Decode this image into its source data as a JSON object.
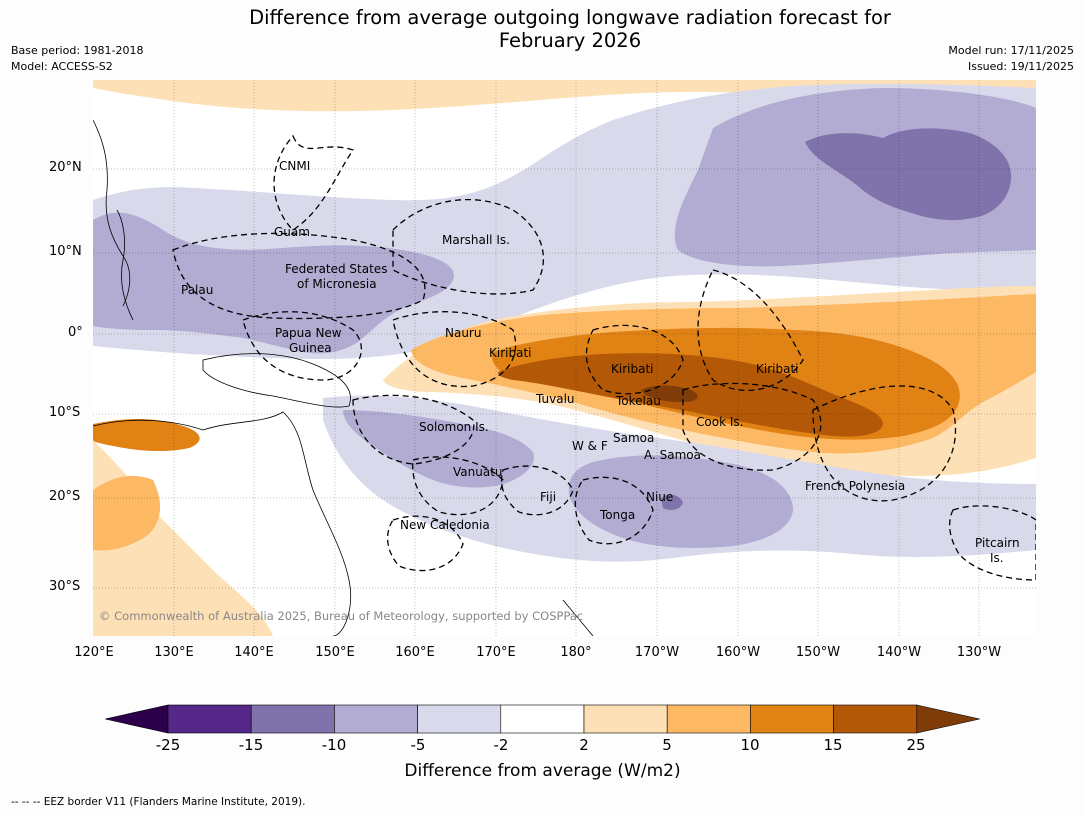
{
  "title_line1": "Difference from average outgoing longwave radiation forecast for",
  "title_line2": "February 2026",
  "base_period": "Base period: 1981-2018",
  "model": "Model: ACCESS-S2",
  "model_run": "Model run: 17/11/2025",
  "issued": "Issued: 19/11/2025",
  "lat_labels": [
    "20°N",
    "10°N",
    "0°",
    "10°S",
    "20°S",
    "30°S"
  ],
  "lon_labels": [
    "120°E",
    "130°E",
    "140°E",
    "150°E",
    "160°E",
    "170°E",
    "180°",
    "170°W",
    "160°W",
    "150°W",
    "140°W",
    "130°W"
  ],
  "regions": {
    "cnmi": "CNMI",
    "guam": "Guam",
    "marshall": "Marshall Is.",
    "fsm_1": "Federated States",
    "fsm_2": "of Micronesia",
    "palau": "Palau",
    "png_1": "Papua New",
    "png_2": "Guinea",
    "nauru": "Nauru",
    "kiribati_w": "Kiribati",
    "kiribati_c": "Kiribati",
    "kiribati_e": "Kiribati",
    "tuvalu": "Tuvalu",
    "tokelau": "Tokelau",
    "cook": "Cook Is.",
    "solomon": "Solomon Is.",
    "wf": "W & F",
    "samoa": "Samoa",
    "asamoa": "A. Samoa",
    "vanuatu": "Vanuatu",
    "fiji": "Fiji",
    "niue": "Niue",
    "tonga": "Tonga",
    "frenchpoly": "French Polynesia",
    "newcal": "New Caledonia",
    "pitcairn_1": "Pitcairn",
    "pitcairn_2": "Is."
  },
  "copyright": "© Commonwealth of Australia 2025, Bureau of Meteorology, supported by COSPPac",
  "colorbar": {
    "ticks": [
      "-25",
      "-15",
      "-10",
      "-5",
      "-2",
      "2",
      "5",
      "10",
      "15",
      "25"
    ],
    "colors": [
      "#2d004b",
      "#542788",
      "#8073ac",
      "#b2abd2",
      "#d8daeb",
      "#ffffff",
      "#fee0b6",
      "#fdb863",
      "#e08214",
      "#b35806",
      "#7f3b08"
    ],
    "label": "Difference from average (W/m2)"
  },
  "eez_note": "--  --  -- EEZ border V11 (Flanders Marine Institute, 2019)."
}
